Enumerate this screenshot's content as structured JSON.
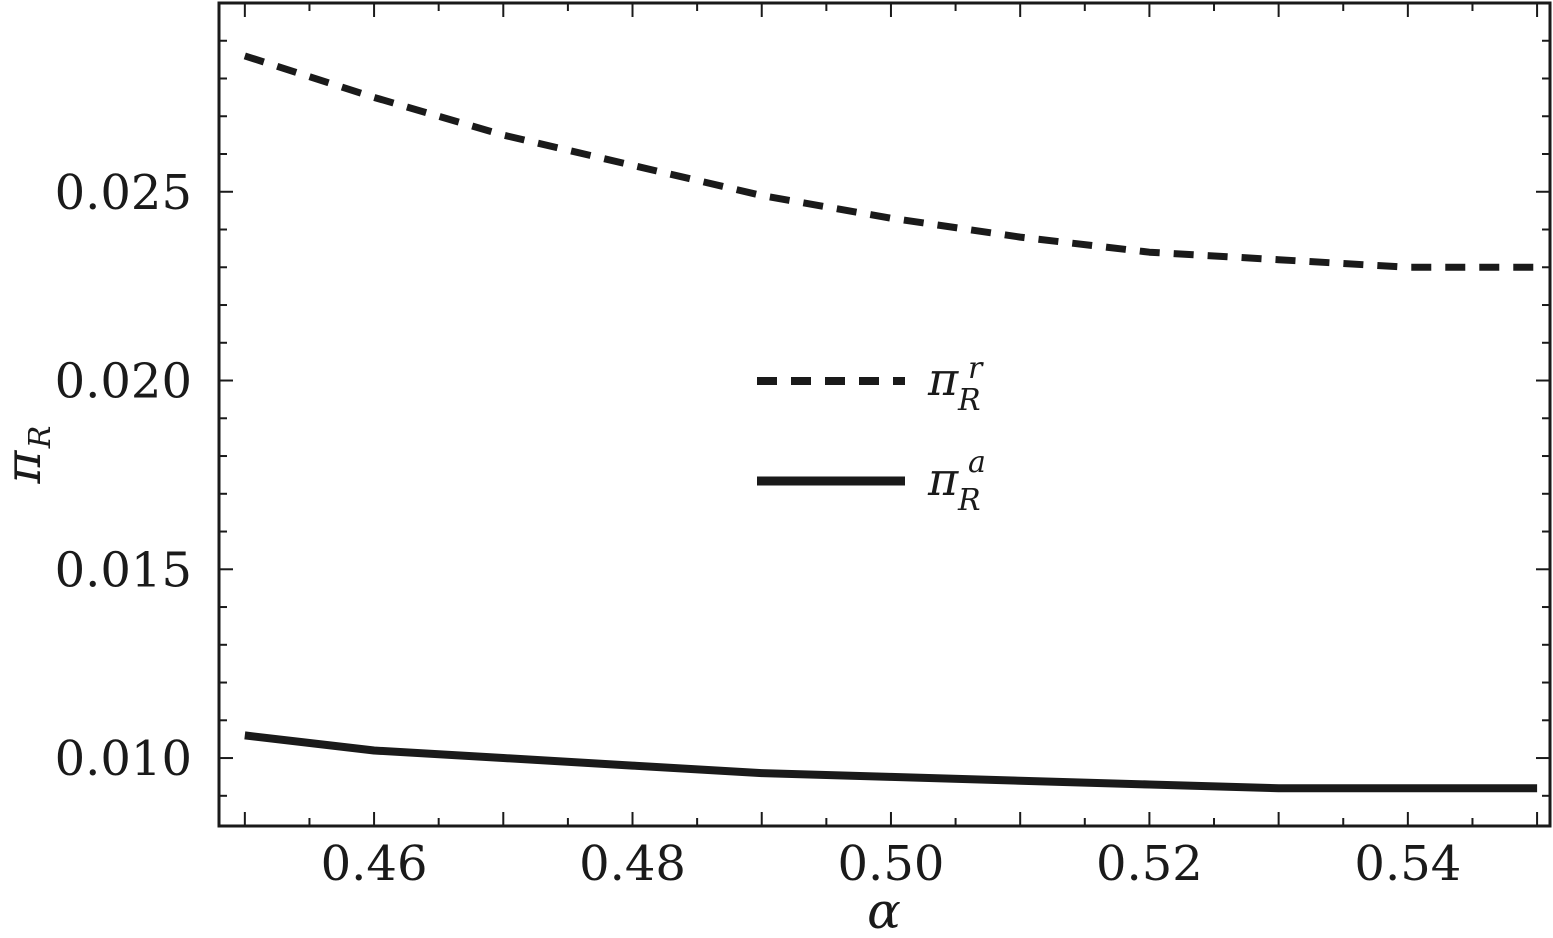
{
  "chart_data": {
    "type": "line",
    "xlabel": "α",
    "ylabel": "π",
    "ylabel_sub": "R",
    "xlim": [
      0.448,
      0.551
    ],
    "ylim": [
      0.0082,
      0.03
    ],
    "xticks": [
      0.46,
      0.48,
      0.5,
      0.52,
      0.54
    ],
    "xtick_labels": [
      "0.46",
      "0.48",
      "0.50",
      "0.52",
      "0.54"
    ],
    "yticks": [
      0.01,
      0.015,
      0.02,
      0.025
    ],
    "ytick_labels": [
      "0.010",
      "0.015",
      "0.020",
      "0.025"
    ],
    "grid": false,
    "legend_position": "center",
    "series": [
      {
        "name": "π",
        "name_sub": "R",
        "name_sup": "r",
        "style": "dashed",
        "color": "#1a1a1a",
        "x": [
          0.45,
          0.46,
          0.47,
          0.48,
          0.49,
          0.5,
          0.51,
          0.52,
          0.53,
          0.54,
          0.55
        ],
        "y": [
          0.0286,
          0.0275,
          0.0265,
          0.0257,
          0.0249,
          0.0243,
          0.0238,
          0.0234,
          0.0232,
          0.023,
          0.023
        ]
      },
      {
        "name": "π",
        "name_sub": "R",
        "name_sup": "a",
        "style": "solid",
        "color": "#1a1a1a",
        "x": [
          0.45,
          0.46,
          0.47,
          0.48,
          0.49,
          0.5,
          0.51,
          0.52,
          0.53,
          0.54,
          0.55
        ],
        "y": [
          0.0106,
          0.0102,
          0.01,
          0.0098,
          0.0096,
          0.0095,
          0.0094,
          0.0093,
          0.0092,
          0.0092,
          0.0092
        ]
      }
    ]
  }
}
